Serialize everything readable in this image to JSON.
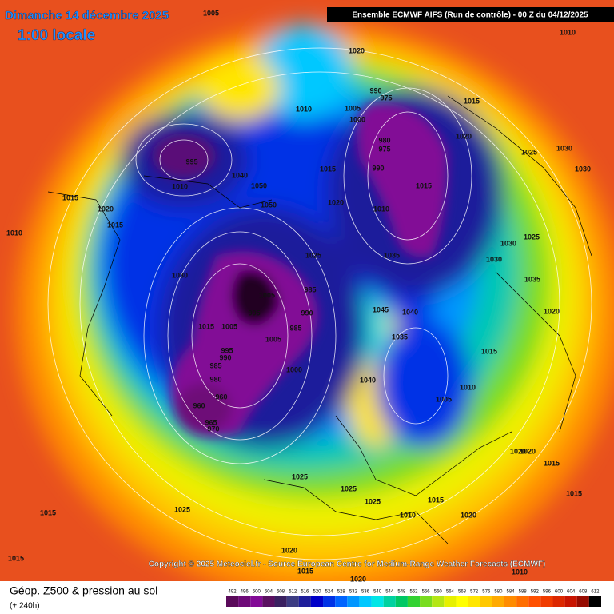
{
  "header": {
    "date": "Dimanche 14 décembre 2025",
    "time": "1:00 locale",
    "model": "Ensemble ECMWF AIFS  (Run de contrôle)  - 00 Z du 04/12/2025"
  },
  "copyright": "Copyright © 2025 Meteociel.fr - Source European Centre for Medium-Range Weather Forecasts (ECMWF)",
  "footer": {
    "title": "Géop. Z500 & pression au sol",
    "lead": "(+ 240h)"
  },
  "pressure_labels": [
    1005,
    1010,
    1020,
    1015,
    1010,
    995,
    1010,
    1040,
    1050,
    1050,
    1010,
    1005,
    1000,
    990,
    975,
    980,
    975,
    990,
    1015,
    1020,
    1015,
    1025,
    1030,
    1030,
    1010,
    1020,
    1015,
    1015,
    1020,
    1030,
    1025,
    985,
    1005,
    995,
    990,
    985,
    1005,
    1015,
    1005,
    995,
    990,
    985,
    980,
    960,
    960,
    965,
    970,
    1000,
    1035,
    1045,
    1040,
    1035,
    1040,
    1005,
    1010,
    1015,
    1020,
    1025,
    1025,
    1025,
    1020,
    1015,
    1025,
    1015,
    1015,
    1020,
    1010,
    1015,
    1020,
    1030,
    1035,
    1030,
    1025,
    1020,
    1020,
    1015,
    1015,
    1010
  ],
  "legend": {
    "values": [
      492,
      496,
      500,
      504,
      508,
      512,
      516,
      520,
      524,
      528,
      532,
      536,
      540,
      544,
      548,
      552,
      556,
      560,
      564,
      568,
      572,
      576,
      580,
      584,
      588,
      592,
      596,
      600,
      604,
      608,
      612
    ],
    "colors": [
      "#5a0a5a",
      "#6e0a78",
      "#820a96",
      "#5a1060",
      "#3a2060",
      "#3c3c82",
      "#1e1e9b",
      "#0000c8",
      "#0032e6",
      "#0064ff",
      "#0096ff",
      "#00c8ff",
      "#00e6e6",
      "#00d2a0",
      "#00c864",
      "#32d232",
      "#78dc1e",
      "#b4e614",
      "#e6f000",
      "#ffff00",
      "#ffe600",
      "#ffc800",
      "#ffaa00",
      "#ff8c00",
      "#ff6e00",
      "#ff5000",
      "#f03c00",
      "#dc2800",
      "#c81400",
      "#960a00",
      "#000000"
    ]
  }
}
